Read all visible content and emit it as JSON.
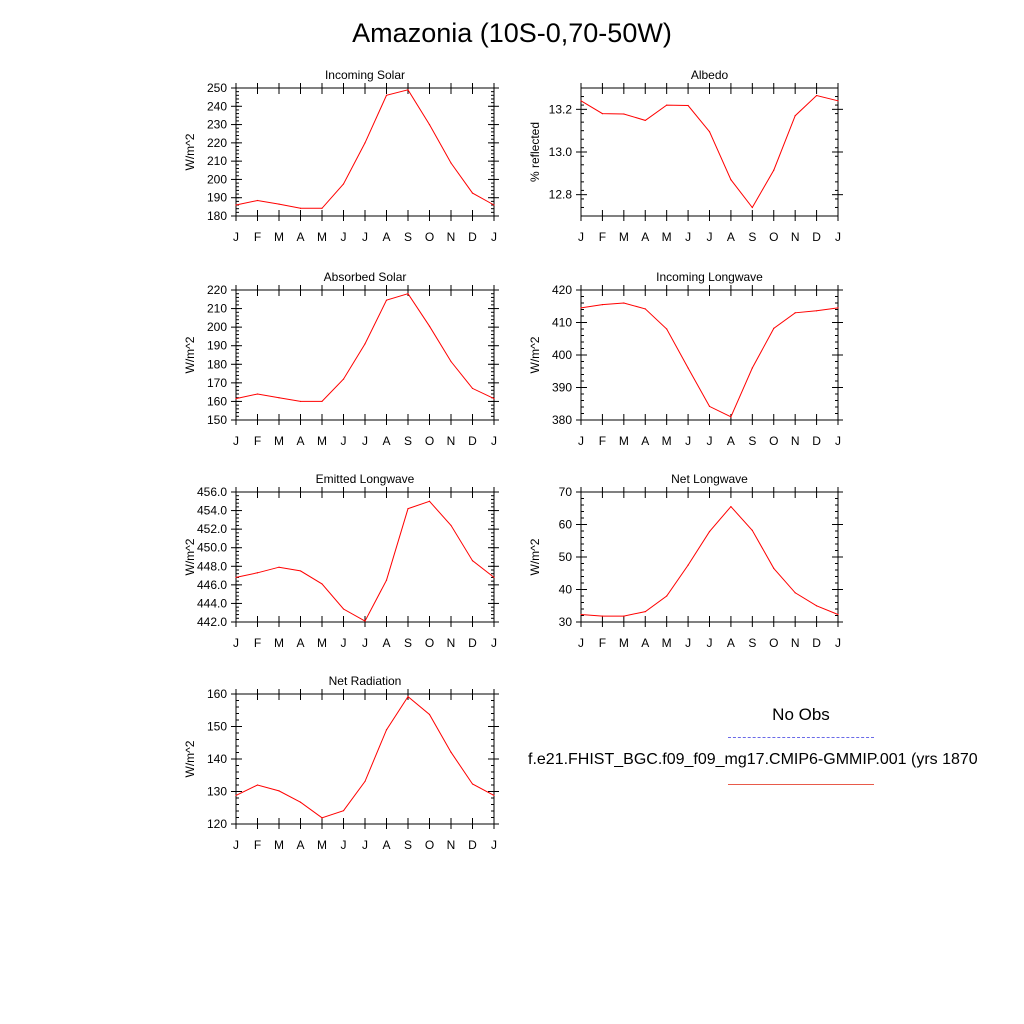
{
  "title": "Amazonia (10S-0,70-50W)",
  "legend": {
    "obs_label": "No Obs",
    "model_label": "f.e21.FHIST_BGC.f09_f09_mg17.CMIP6-GMMIP.001 (yrs 1870",
    "obs_color": "#6a6ae8",
    "model_color": "#e85a4a"
  },
  "line_color": "#ff0000",
  "chart_data": [
    {
      "id": "incoming-solar",
      "type": "line",
      "title": "Incoming Solar",
      "ylabel": "W/m^2",
      "categories": [
        "J",
        "F",
        "M",
        "A",
        "M",
        "J",
        "J",
        "A",
        "S",
        "O",
        "N",
        "D",
        "J"
      ],
      "values": [
        186,
        188.5,
        186.5,
        184.2,
        184.2,
        197.5,
        220,
        246,
        249,
        230,
        209,
        192.5,
        186
      ],
      "ylim": [
        180,
        250
      ],
      "yticks": [
        "180",
        "190",
        "200",
        "210",
        "220",
        "230",
        "240",
        "250"
      ],
      "ytick_values": [
        180,
        190,
        200,
        210,
        220,
        230,
        240,
        250
      ],
      "yminor": 2
    },
    {
      "id": "albedo",
      "type": "line",
      "title": "Albedo",
      "ylabel": "% reflected",
      "categories": [
        "J",
        "F",
        "M",
        "A",
        "M",
        "J",
        "J",
        "A",
        "S",
        "O",
        "N",
        "D",
        "J"
      ],
      "values": [
        13.24,
        13.18,
        13.178,
        13.148,
        13.22,
        13.218,
        13.095,
        12.87,
        12.74,
        12.915,
        13.17,
        13.265,
        13.24
      ],
      "ylim": [
        12.7,
        13.3
      ],
      "yticks": [
        "12.8",
        "13.0",
        "13.2"
      ],
      "ytick_values": [
        12.8,
        13.0,
        13.2
      ],
      "yminor": 0.04
    },
    {
      "id": "absorbed-solar",
      "type": "line",
      "title": "Absorbed Solar",
      "ylabel": "W/m^2",
      "categories": [
        "J",
        "F",
        "M",
        "A",
        "M",
        "J",
        "J",
        "A",
        "S",
        "O",
        "N",
        "D",
        "J"
      ],
      "values": [
        161.5,
        164,
        162,
        160,
        160,
        172,
        191,
        214.5,
        218,
        200.5,
        181.5,
        167,
        161.5
      ],
      "ylim": [
        150,
        220
      ],
      "yticks": [
        "150",
        "160",
        "170",
        "180",
        "190",
        "200",
        "210",
        "220"
      ],
      "ytick_values": [
        150,
        160,
        170,
        180,
        190,
        200,
        210,
        220
      ],
      "yminor": 2
    },
    {
      "id": "incoming-longwave",
      "type": "line",
      "title": "Incoming Longwave",
      "ylabel": "W/m^2",
      "categories": [
        "J",
        "F",
        "M",
        "A",
        "M",
        "J",
        "J",
        "A",
        "S",
        "O",
        "N",
        "D",
        "J"
      ],
      "values": [
        414.5,
        415.5,
        416,
        414.2,
        408,
        396,
        384.2,
        381,
        396,
        408.2,
        413,
        413.6,
        414.5
      ],
      "ylim": [
        380,
        420
      ],
      "yticks": [
        "380",
        "390",
        "400",
        "410",
        "420"
      ],
      "ytick_values": [
        380,
        390,
        400,
        410,
        420
      ],
      "yminor": 2
    },
    {
      "id": "emitted-longwave",
      "type": "line",
      "title": "Emitted Longwave",
      "ylabel": "W/m^2",
      "categories": [
        "J",
        "F",
        "M",
        "A",
        "M",
        "J",
        "J",
        "A",
        "S",
        "O",
        "N",
        "D",
        "J"
      ],
      "values": [
        446.8,
        447.3,
        447.9,
        447.5,
        446.1,
        443.4,
        442.1,
        446.5,
        454.2,
        455.0,
        452.4,
        448.6,
        446.8
      ],
      "ylim": [
        442,
        456
      ],
      "yticks": [
        "442.0",
        "444.0",
        "446.0",
        "448.0",
        "450.0",
        "452.0",
        "454.0",
        "456.0"
      ],
      "ytick_values": [
        442,
        444,
        446,
        448,
        450,
        452,
        454,
        456
      ],
      "yminor": 0.4
    },
    {
      "id": "net-longwave",
      "type": "line",
      "title": "Net Longwave",
      "ylabel": "W/m^2",
      "categories": [
        "J",
        "F",
        "M",
        "A",
        "M",
        "J",
        "J",
        "A",
        "S",
        "O",
        "N",
        "D",
        "J"
      ],
      "values": [
        32.3,
        31.8,
        31.8,
        33.2,
        38,
        47.5,
        57.8,
        65.5,
        58.2,
        46.5,
        39,
        35,
        32.3
      ],
      "ylim": [
        30,
        70
      ],
      "yticks": [
        "30",
        "40",
        "50",
        "60",
        "70"
      ],
      "ytick_values": [
        30,
        40,
        50,
        60,
        70
      ],
      "yminor": 2
    },
    {
      "id": "net-radiation",
      "type": "line",
      "title": "Net Radiation",
      "ylabel": "W/m^2",
      "categories": [
        "J",
        "F",
        "M",
        "A",
        "M",
        "J",
        "J",
        "A",
        "S",
        "O",
        "N",
        "D",
        "J"
      ],
      "values": [
        128.8,
        132,
        130.2,
        126.7,
        121.9,
        124.1,
        133.1,
        149,
        159.2,
        153.7,
        142.1,
        132.3,
        128.8
      ],
      "ylim": [
        120,
        160
      ],
      "yticks": [
        "120",
        "130",
        "140",
        "150",
        "160"
      ],
      "ytick_values": [
        120,
        130,
        140,
        150,
        160
      ],
      "yminor": 2
    }
  ]
}
